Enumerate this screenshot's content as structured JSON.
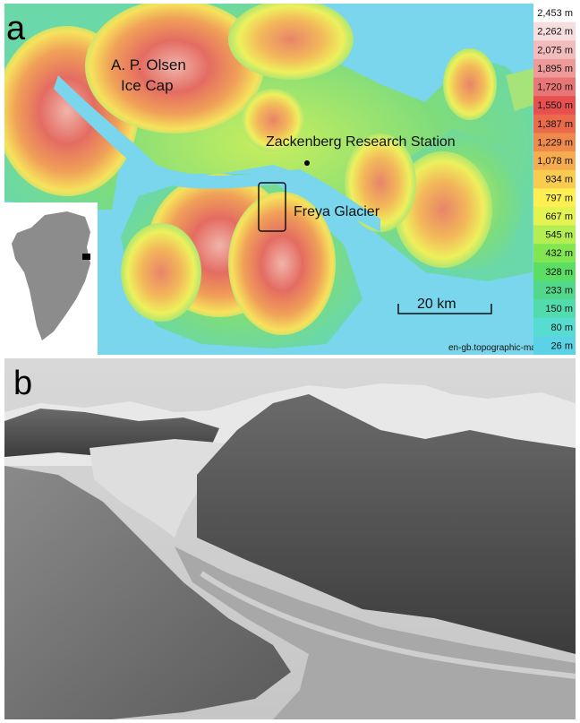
{
  "panel_a": {
    "label": "a",
    "place_labels": {
      "ice_cap_line1": "A. P. Olsen",
      "ice_cap_line2": "Ice Cap",
      "station": "Zackenberg Research Station",
      "glacier": "Freya Glacier"
    },
    "scale_bar": "20 km",
    "credit": "en-gb.topographic-map.com",
    "elevation_legend": [
      {
        "label": "2,453 m",
        "color": "#ffffff"
      },
      {
        "label": "2,262 m",
        "color": "#f6dede"
      },
      {
        "label": "2,075 m",
        "color": "#f2bcbc"
      },
      {
        "label": "1,895 m",
        "color": "#ee9a9a"
      },
      {
        "label": "1,720 m",
        "color": "#e97676"
      },
      {
        "label": "1,550 m",
        "color": "#e85050"
      },
      {
        "label": "1,387 m",
        "color": "#ec6a4c"
      },
      {
        "label": "1,229 m",
        "color": "#f08a4c"
      },
      {
        "label": "1,078 m",
        "color": "#f5ac4e"
      },
      {
        "label": "934 m",
        "color": "#f9cc50"
      },
      {
        "label": "797 m",
        "color": "#fdf050"
      },
      {
        "label": "667 m",
        "color": "#e2f352"
      },
      {
        "label": "545 m",
        "color": "#b4ee52"
      },
      {
        "label": "432 m",
        "color": "#82e652"
      },
      {
        "label": "328 m",
        "color": "#5cde62"
      },
      {
        "label": "233 m",
        "color": "#52d88a"
      },
      {
        "label": "150 m",
        "color": "#52dcae"
      },
      {
        "label": "80 m",
        "color": "#56dcd0"
      },
      {
        "label": "26 m",
        "color": "#5cd2e6"
      }
    ],
    "colors": {
      "water": "#7ad6ec",
      "lowland": "#8fe07e",
      "mountain": "#e77a6e",
      "inset_land": "#8c8c8c"
    }
  },
  "panel_b": {
    "label": "b"
  }
}
